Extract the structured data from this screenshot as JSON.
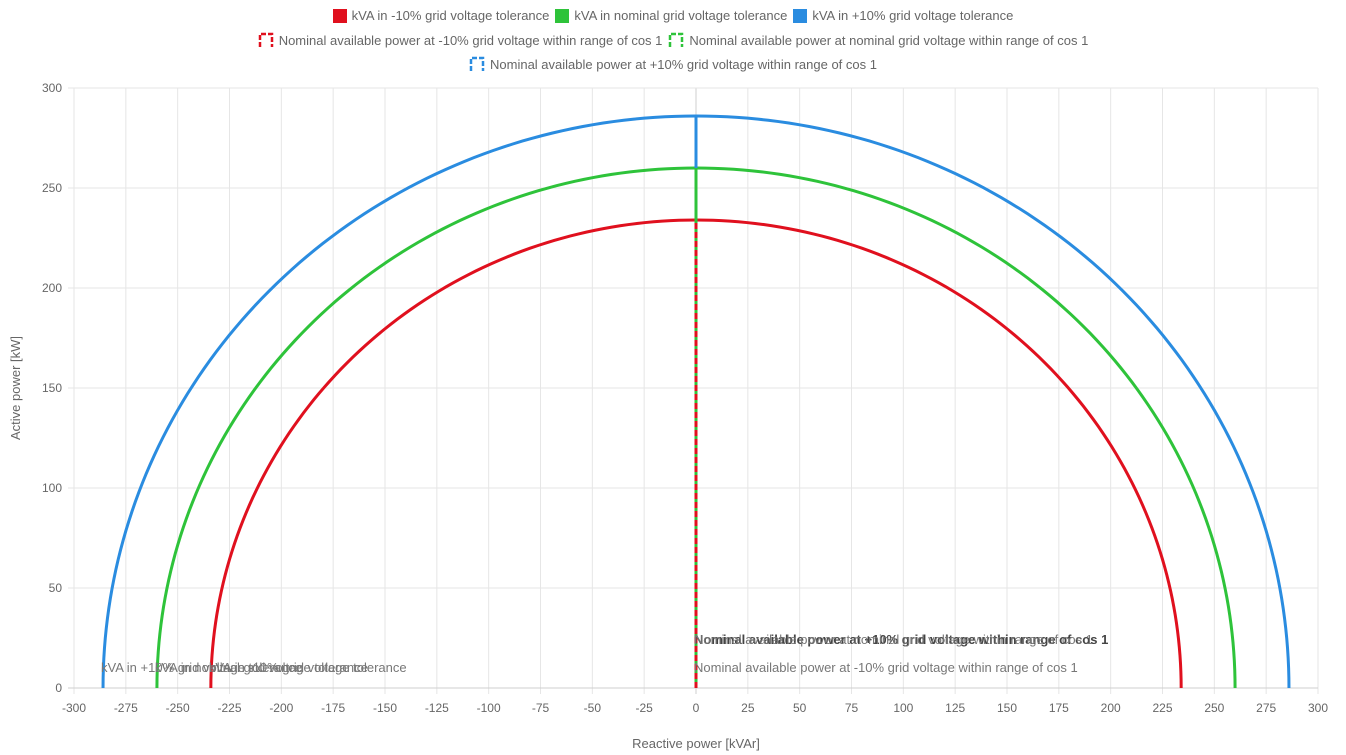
{
  "chart_data": {
    "type": "line",
    "xlabel": "Reactive power [kVAr]",
    "ylabel": "Active power [kW]",
    "xlim": [
      -300,
      300
    ],
    "ylim": [
      0,
      300
    ],
    "x_ticks": [
      -300,
      -275,
      -250,
      -225,
      -200,
      -175,
      -150,
      -125,
      -100,
      -75,
      -50,
      -25,
      0,
      25,
      50,
      75,
      100,
      125,
      150,
      175,
      200,
      225,
      250,
      275,
      300
    ],
    "y_ticks": [
      0,
      50,
      100,
      150,
      200,
      250,
      300
    ],
    "grid": true,
    "legend_position": "top",
    "series": [
      {
        "name": "kVA in -10% grid voltage tolerance",
        "color": "#e0101e",
        "kind": "semicircle",
        "radius": 234
      },
      {
        "name": "kVA in nominal grid voltage tolerance",
        "color": "#2ec33a",
        "kind": "semicircle",
        "radius": 260
      },
      {
        "name": "kVA in +10% grid voltage tolerance",
        "color": "#2a8ce0",
        "kind": "semicircle",
        "radius": 286
      },
      {
        "name": "Nominal available power at -10% grid voltage within range of cos 1",
        "color": "#e0101e",
        "kind": "vertical",
        "x": 0,
        "y_range": [
          0,
          234
        ]
      },
      {
        "name": "Nominal available power at nominal grid voltage within range of cos 1",
        "color": "#2ec33a",
        "kind": "vertical",
        "x": 0,
        "y_range": [
          0,
          260
        ]
      },
      {
        "name": "Nominal available power at +10% grid voltage within range of cos 1",
        "color": "#2a8ce0",
        "kind": "vertical",
        "x": 0,
        "y_range": [
          0,
          286
        ]
      }
    ],
    "annotations": [
      {
        "text": "kVA in -10% grid voltage tolerance",
        "x": -234,
        "y": 10,
        "anchor": "start",
        "color": "#777777",
        "weight": "normal"
      },
      {
        "text": "kVA in nominal grid voltage tolerance",
        "x": -260,
        "y": 10,
        "anchor": "start",
        "color": "#777777",
        "weight": "normal"
      },
      {
        "text": "kVA in +10% grid voltage tolerance",
        "x": -286,
        "y": 10,
        "anchor": "start",
        "color": "#777777",
        "weight": "normal"
      },
      {
        "text": "Nominal available power at +10% grid voltage within range of cos 1",
        "x": 0,
        "y": 24,
        "anchor": "start",
        "color": "#444444",
        "weight": "bold"
      },
      {
        "text": "Nominal available power at nominal grid voltage within range of cos 1",
        "x": 0,
        "y": 24,
        "anchor": "start",
        "color": "#777777",
        "weight": "normal"
      },
      {
        "text": "Nominal available power at -10% grid voltage within range of cos 1",
        "x": 0,
        "y": 10,
        "anchor": "start",
        "color": "#777777",
        "weight": "normal"
      }
    ]
  }
}
